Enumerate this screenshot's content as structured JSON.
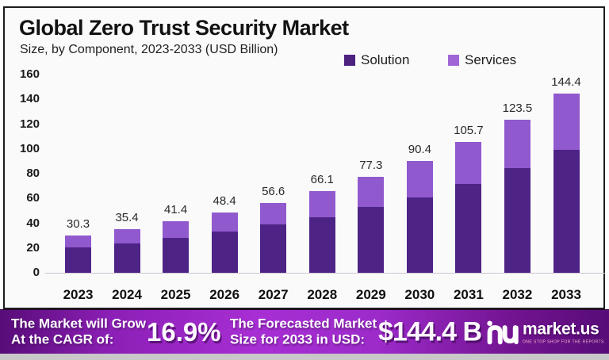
{
  "header": {
    "title": "Global Zero Trust Security Market",
    "subtitle": "Size, by Component, 2023-2033 (USD Billion)"
  },
  "legend": {
    "items": [
      {
        "label": "Solution",
        "color": "#4b2280"
      },
      {
        "label": "Services",
        "color": "#a066d6"
      }
    ]
  },
  "chart_data": {
    "type": "bar",
    "stacked": true,
    "title": "Global Zero Trust Security Market",
    "subtitle": "Size, by Component, 2023-2033 (USD Billion)",
    "unit": "USD Billion",
    "categories": [
      "2023",
      "2024",
      "2025",
      "2026",
      "2027",
      "2028",
      "2029",
      "2030",
      "2031",
      "2032",
      "2033"
    ],
    "series": [
      {
        "name": "Solution",
        "color": "#4e2386",
        "values": [
          20.8,
          24.0,
          28.2,
          33.2,
          38.8,
          45.0,
          53.0,
          61.0,
          72.0,
          84.5,
          99.0
        ]
      },
      {
        "name": "Services",
        "color": "#9159ce",
        "values": [
          9.5,
          11.4,
          13.2,
          15.2,
          17.8,
          21.1,
          24.3,
          29.4,
          33.7,
          39.0,
          45.4
        ]
      }
    ],
    "totals": [
      30.3,
      35.4,
      41.4,
      48.4,
      56.6,
      66.1,
      77.3,
      90.4,
      105.7,
      123.5,
      144.4
    ],
    "ylim": [
      0,
      160
    ],
    "yticks": [
      0,
      20,
      40,
      60,
      80,
      100,
      120,
      140,
      160
    ],
    "grid": false,
    "legend_position": "top-right"
  },
  "banner": {
    "cagr_label_line1": "The Market will Grow",
    "cagr_label_line2": "At the CAGR of:",
    "cagr_value": "16.9%",
    "forecast_label_line1": "The Forecasted Market",
    "forecast_label_line2": "Size for 2033 in USD:",
    "forecast_value": "$144.4 B",
    "brand_name": "market.us",
    "brand_tagline": "ONE STOP SHOP FOR THE REPORTS",
    "logo_icon": "market-us-logo"
  }
}
